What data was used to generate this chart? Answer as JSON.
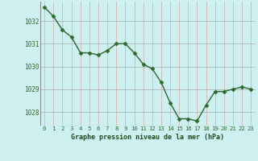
{
  "x": [
    0,
    1,
    2,
    3,
    4,
    5,
    6,
    7,
    8,
    9,
    10,
    11,
    12,
    13,
    14,
    15,
    16,
    17,
    18,
    19,
    20,
    21,
    22,
    23
  ],
  "y": [
    1032.6,
    1032.2,
    1031.6,
    1031.3,
    1030.6,
    1030.6,
    1030.5,
    1030.7,
    1031.0,
    1031.0,
    1030.6,
    1030.1,
    1029.9,
    1029.3,
    1028.4,
    1027.7,
    1027.7,
    1027.6,
    1028.3,
    1028.9,
    1028.9,
    1029.0,
    1029.1,
    1029.0
  ],
  "line_color": "#2d6a2d",
  "marker": "D",
  "marker_size": 2.5,
  "bg_color": "#cef0f0",
  "grid_color": "#b0c8c8",
  "grid_color_v": "#c0a0a0",
  "xlabel": "Graphe pression niveau de la mer (hPa)",
  "xlabel_color": "#1a4d1a",
  "tick_color": "#2d6a2d",
  "ylim": [
    1027.4,
    1032.85
  ],
  "yticks": [
    1028,
    1029,
    1030,
    1031,
    1032
  ],
  "xlim": [
    -0.5,
    23.5
  ],
  "xticks": [
    0,
    1,
    2,
    3,
    4,
    5,
    6,
    7,
    8,
    9,
    10,
    11,
    12,
    13,
    14,
    15,
    16,
    17,
    18,
    19,
    20,
    21,
    22,
    23
  ]
}
